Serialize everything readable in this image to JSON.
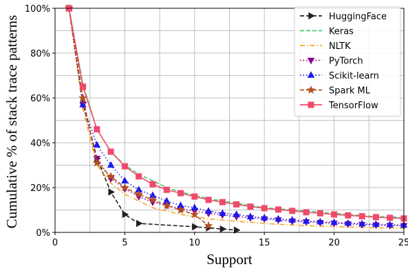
{
  "chart_data": {
    "type": "line",
    "title": "",
    "xlabel": "Support",
    "ylabel": "Cumulative % of stack trace patterns",
    "xlim": [
      0,
      25
    ],
    "ylim": [
      0,
      100
    ],
    "x_ticks": [
      0,
      5,
      10,
      15,
      20,
      25
    ],
    "y_ticks": [
      0,
      20,
      40,
      60,
      80,
      100
    ],
    "y_tick_labels": [
      "0%",
      "20%",
      "40%",
      "60%",
      "80%",
      "100%"
    ],
    "grid": true,
    "legend_position": "top-right",
    "series": [
      {
        "name": "HuggingFace",
        "color": "#222222",
        "dash": "dashed",
        "marker": "tri-right",
        "x": [
          1,
          2,
          3,
          4,
          5,
          6,
          10,
          11,
          12,
          13
        ],
        "y": [
          100,
          58,
          33,
          18,
          8,
          4,
          2.5,
          2,
          1.5,
          1
        ]
      },
      {
        "name": "Keras",
        "color": "#3dcc6a",
        "dash": "dashed",
        "marker": "none",
        "x": [
          1,
          2,
          3,
          4,
          5,
          6,
          7,
          8,
          9,
          10,
          11,
          12,
          13,
          14,
          15,
          16,
          17,
          18,
          19,
          20,
          21,
          22,
          23,
          24,
          25
        ],
        "y": [
          100,
          66,
          46,
          36,
          30,
          26,
          23,
          20,
          18,
          16.5,
          15,
          14,
          13,
          12,
          11,
          10.5,
          10,
          9.5,
          9,
          8.5,
          8,
          7.5,
          7,
          7,
          6.5
        ]
      },
      {
        "name": "NLTK",
        "color": "#f5a623",
        "dash": "dashdot",
        "marker": "none",
        "x": [
          1,
          2,
          3,
          4,
          5,
          6,
          7,
          8,
          9,
          10,
          11,
          12,
          13,
          14,
          15,
          16,
          17,
          18,
          19,
          20,
          21,
          22,
          23,
          24,
          25
        ],
        "y": [
          100,
          55,
          30,
          22,
          17,
          14,
          11,
          9.5,
          8,
          7,
          6,
          5.5,
          5,
          4.5,
          4,
          3.6,
          3.3,
          3,
          2.8,
          2.6,
          2.4,
          2.2,
          2.1,
          2,
          1.9
        ]
      },
      {
        "name": "PyTorch",
        "color": "#8a008a",
        "dash": "dotted",
        "marker": "tri-down",
        "x": [
          1,
          2,
          3,
          4,
          5,
          6,
          7,
          8,
          9,
          10,
          11,
          12,
          13,
          14,
          15,
          16,
          17,
          18,
          19,
          20,
          21,
          22,
          23,
          24,
          25
        ],
        "y": [
          100,
          57,
          33,
          24,
          19.5,
          16,
          13.5,
          12,
          10.5,
          9.5,
          8.5,
          7.8,
          7,
          6.5,
          6,
          5.5,
          5,
          4.7,
          4.4,
          4.1,
          3.8,
          3.5,
          3.3,
          3.1,
          3
        ]
      },
      {
        "name": "Scikit-learn",
        "color": "#1a1aee",
        "dash": "dotted",
        "marker": "tri-up",
        "x": [
          1,
          2,
          3,
          4,
          5,
          6,
          7,
          8,
          9,
          10,
          11,
          12,
          13,
          14,
          15,
          16,
          17,
          18,
          19,
          20,
          21,
          22,
          23,
          24,
          25
        ],
        "y": [
          100,
          57,
          39,
          30,
          23,
          19,
          16.5,
          14,
          12,
          11,
          9.5,
          8.5,
          8,
          7,
          6.5,
          6,
          5.5,
          5,
          4.7,
          4.4,
          4.1,
          3.8,
          3.6,
          3.4,
          3.2
        ]
      },
      {
        "name": "Spark ML",
        "color": "#b5501e",
        "dash": "dashed",
        "marker": "star",
        "x": [
          1,
          2,
          3,
          4,
          5,
          6,
          7,
          8,
          9,
          10,
          11
        ],
        "y": [
          100,
          60,
          31,
          25,
          20,
          17,
          14.5,
          12,
          10,
          8,
          3
        ]
      },
      {
        "name": "TensorFlow",
        "color": "#f04a6a",
        "dash": "solid",
        "marker": "square",
        "x": [
          1,
          2,
          3,
          4,
          5,
          6,
          7,
          8,
          9,
          10,
          11,
          12,
          13,
          14,
          15,
          16,
          17,
          18,
          19,
          20,
          21,
          22,
          23,
          24,
          25
        ],
        "y": [
          100,
          65,
          46,
          36,
          29.5,
          25,
          21.5,
          19,
          17.5,
          16,
          14.5,
          13.5,
          12.5,
          11.5,
          10.8,
          10.2,
          9.6,
          9,
          8.5,
          8,
          7.6,
          7.2,
          6.8,
          6.5,
          6.2
        ]
      }
    ]
  }
}
